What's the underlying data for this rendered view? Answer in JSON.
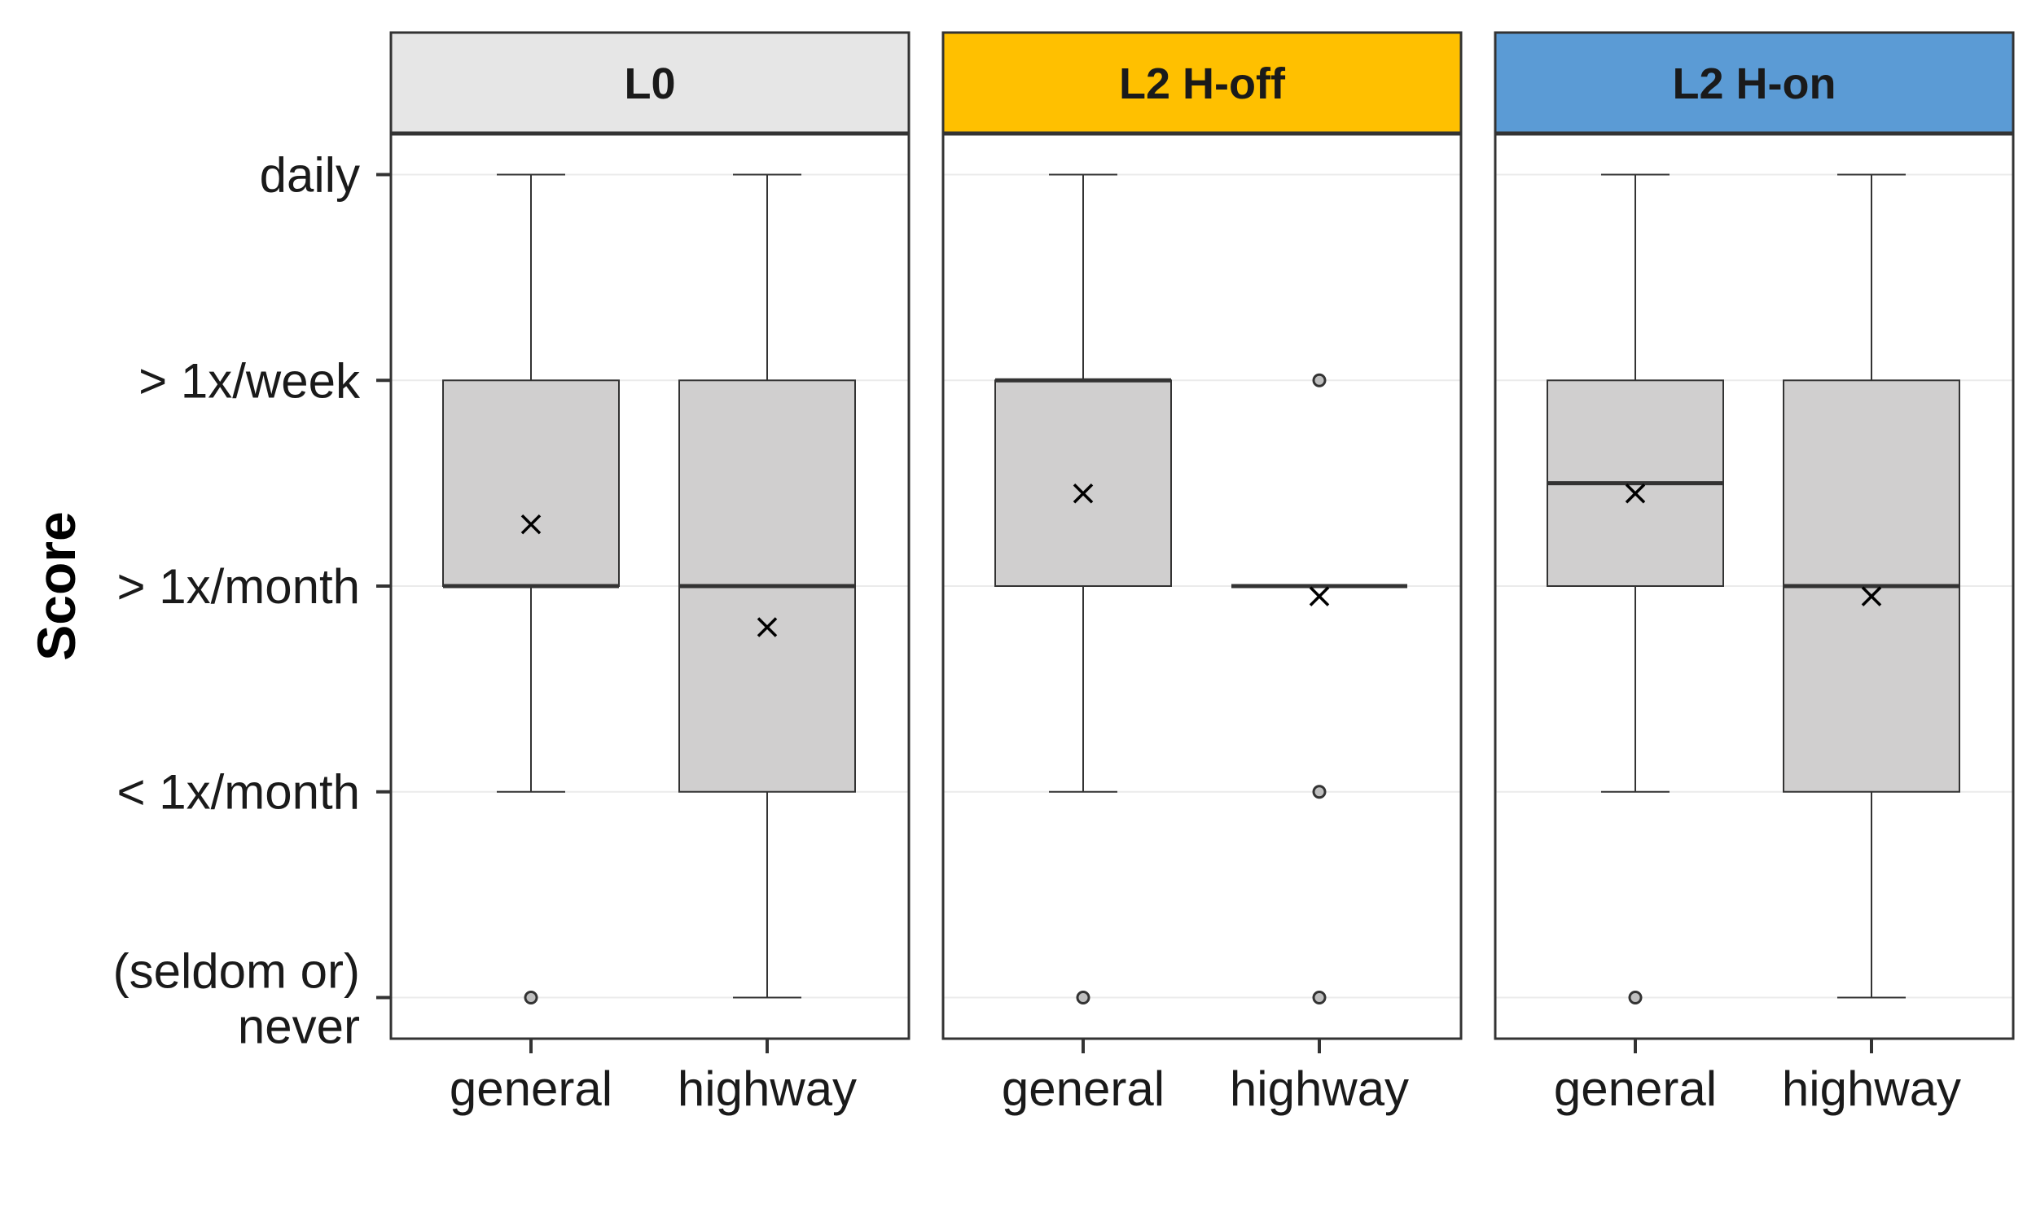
{
  "chart_data": {
    "type": "boxplot",
    "ylabel": "Score",
    "y_levels": [
      {
        "value": 1,
        "label": [
          "(seldom or)",
          "never"
        ]
      },
      {
        "value": 2,
        "label": [
          "< 1x/month"
        ]
      },
      {
        "value": 3,
        "label": [
          "> 1x/month"
        ]
      },
      {
        "value": 4,
        "label": [
          "> 1x/week"
        ]
      },
      {
        "value": 5,
        "label": [
          "daily"
        ]
      }
    ],
    "ylim": [
      0.8,
      5.2
    ],
    "categories": [
      "general",
      "highway"
    ],
    "grid": true,
    "panels": [
      {
        "title": "L0",
        "strip_color": "#e6e6e6",
        "boxes": [
          {
            "category": "general",
            "whisker_low": 2,
            "q1": 3,
            "median": 3,
            "q3": 4,
            "whisker_high": 5,
            "mean": 3.3,
            "outliers": [
              1
            ]
          },
          {
            "category": "highway",
            "whisker_low": 1,
            "q1": 2,
            "median": 3,
            "q3": 4,
            "whisker_high": 5,
            "mean": 2.8,
            "outliers": []
          }
        ]
      },
      {
        "title": "L2 H-off",
        "strip_color": "#ffc000",
        "boxes": [
          {
            "category": "general",
            "whisker_low": 2,
            "q1": 3,
            "median": 4,
            "q3": 4,
            "whisker_high": 5,
            "mean": 3.45,
            "outliers": [
              1
            ]
          },
          {
            "category": "highway",
            "whisker_low": 3,
            "q1": 3,
            "median": 3,
            "q3": 3,
            "whisker_high": 3,
            "mean": 2.95,
            "outliers": [
              4,
              2,
              1
            ]
          }
        ]
      },
      {
        "title": "L2 H-on",
        "strip_color": "#5b9bd5",
        "boxes": [
          {
            "category": "general",
            "whisker_low": 2,
            "q1": 3,
            "median": 3.5,
            "q3": 4,
            "whisker_high": 5,
            "mean": 3.45,
            "outliers": [
              1
            ]
          },
          {
            "category": "highway",
            "whisker_low": 1,
            "q1": 2,
            "median": 3,
            "q3": 4,
            "whisker_high": 5,
            "mean": 2.95,
            "outliers": []
          }
        ]
      }
    ],
    "colors": {
      "box_fill": "#d0cfcf",
      "box_stroke": "#333333",
      "grid": "#ebebeb",
      "panel_border": "#333333"
    }
  }
}
